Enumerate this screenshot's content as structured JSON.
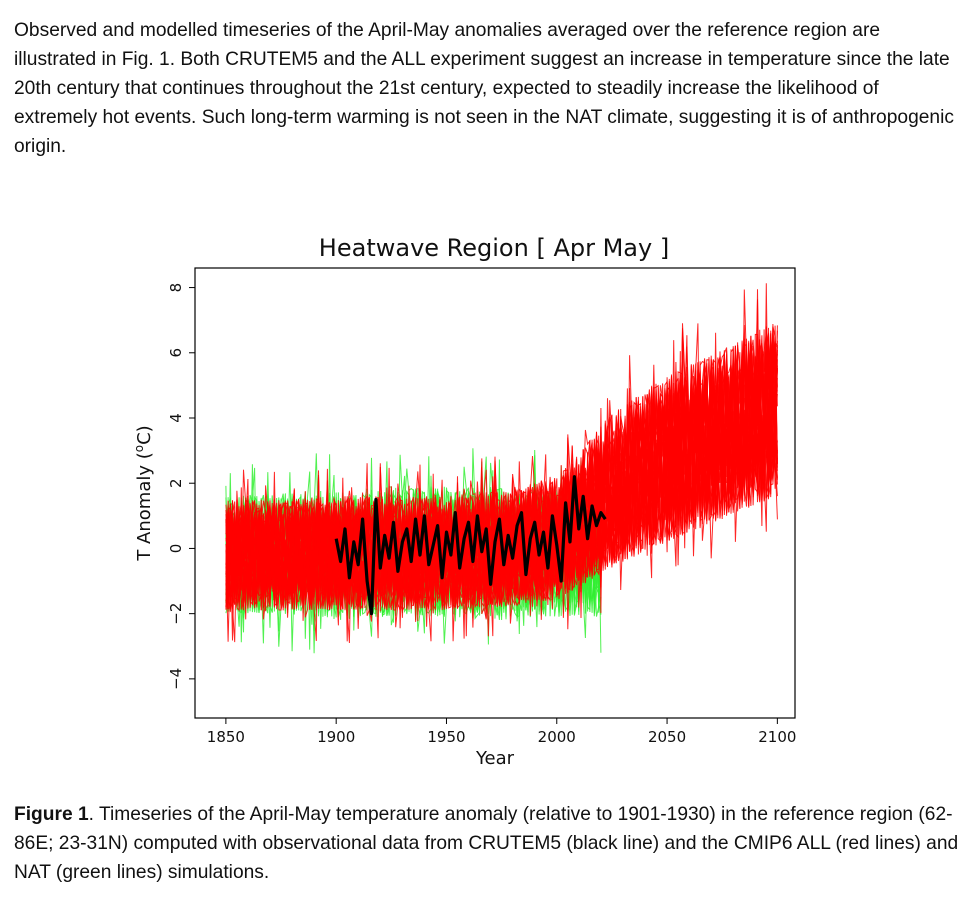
{
  "paragraph": "Observed and modelled timeseries of the April-May anomalies averaged over the reference region are illustrated in Fig. 1. Both CRUTEM5 and the ALL experiment suggest an increase in temperature since the late 20th century that continues throughout the 21st century, expected to steadily increase the likelihood of extremely hot events. Such long-term warming is not seen in the NAT climate, suggesting it is of anthropogenic origin.",
  "caption": {
    "label": "Figure 1",
    "text": ". Timeseries of the April-May temperature anomaly (relative to 1901-1930) in the reference region (62-86E; 23-31N) computed with observational data from CRUTEM5 (black line) and the CMIP6 ALL (red lines) and NAT (green lines) simulations."
  },
  "chart_data": {
    "type": "line",
    "title": "Heatwave Region [ Apr May ]",
    "xlabel": "Year",
    "ylabel": "T Anomaly (°C)",
    "xlim": [
      1836,
      2108
    ],
    "ylim": [
      -5.2,
      8.6
    ],
    "xticks": [
      "1850",
      "1900",
      "1950",
      "2000",
      "2050",
      "2100"
    ],
    "yticks": [
      "8",
      "6",
      "4",
      "2",
      "0",
      "−2",
      "−4"
    ],
    "grid": false,
    "legend": "none",
    "colors": {
      "ALL": "#ff0000",
      "NAT": "#33ee33",
      "CRUTEM5": "#000000"
    },
    "series": [
      {
        "key": "NAT",
        "envelope": {
          "x": [
            1850,
            1875,
            1900,
            1925,
            1950,
            1975,
            2000,
            2020
          ],
          "low": [
            -2.0,
            -2.0,
            -2.2,
            -2.1,
            -2.1,
            -2.2,
            -2.1,
            -2.1
          ],
          "high": [
            1.6,
            1.7,
            1.8,
            1.9,
            1.9,
            1.9,
            1.8,
            1.7
          ]
        }
      },
      {
        "key": "ALL",
        "envelope": {
          "x": [
            1850,
            1875,
            1900,
            1925,
            1950,
            1975,
            2000,
            2010,
            2025,
            2050,
            2075,
            2100
          ],
          "low": [
            -1.9,
            -1.9,
            -1.9,
            -1.9,
            -1.9,
            -1.8,
            -1.6,
            -1.2,
            -0.6,
            0.2,
            0.9,
            1.6
          ],
          "high": [
            1.5,
            1.5,
            1.6,
            1.6,
            1.6,
            1.8,
            2.2,
            2.9,
            4.2,
            5.3,
            6.1,
            7.0
          ]
        }
      },
      {
        "key": "CRUTEM5",
        "x": [
          1900,
          1902,
          1904,
          1906,
          1908,
          1910,
          1912,
          1914,
          1916,
          1918,
          1920,
          1922,
          1924,
          1926,
          1928,
          1930,
          1932,
          1934,
          1936,
          1938,
          1940,
          1942,
          1944,
          1946,
          1948,
          1950,
          1952,
          1954,
          1956,
          1958,
          1960,
          1962,
          1964,
          1966,
          1968,
          1970,
          1972,
          1974,
          1976,
          1978,
          1980,
          1982,
          1984,
          1986,
          1988,
          1990,
          1992,
          1994,
          1996,
          1998,
          2000,
          2002,
          2004,
          2006,
          2008,
          2010,
          2012,
          2014,
          2016,
          2018,
          2020,
          2022
        ],
        "y": [
          0.3,
          -0.4,
          0.6,
          -0.9,
          0.2,
          -0.5,
          0.9,
          -1.0,
          -2.0,
          1.5,
          -0.6,
          0.4,
          -0.3,
          0.8,
          -0.7,
          0.2,
          0.6,
          -0.4,
          0.9,
          -0.2,
          1.0,
          -0.5,
          0.1,
          0.7,
          -0.9,
          0.5,
          -0.2,
          1.1,
          -0.6,
          0.3,
          0.8,
          -0.4,
          1.0,
          -0.1,
          0.6,
          -1.1,
          0.2,
          0.9,
          -0.5,
          0.4,
          -0.3,
          0.7,
          1.1,
          -0.8,
          0.3,
          0.8,
          -0.2,
          0.5,
          -0.6,
          1.0,
          0.1,
          -1.0,
          1.4,
          0.2,
          2.2,
          0.6,
          1.6,
          0.3,
          1.3,
          0.7,
          1.1,
          0.9
        ]
      }
    ]
  }
}
